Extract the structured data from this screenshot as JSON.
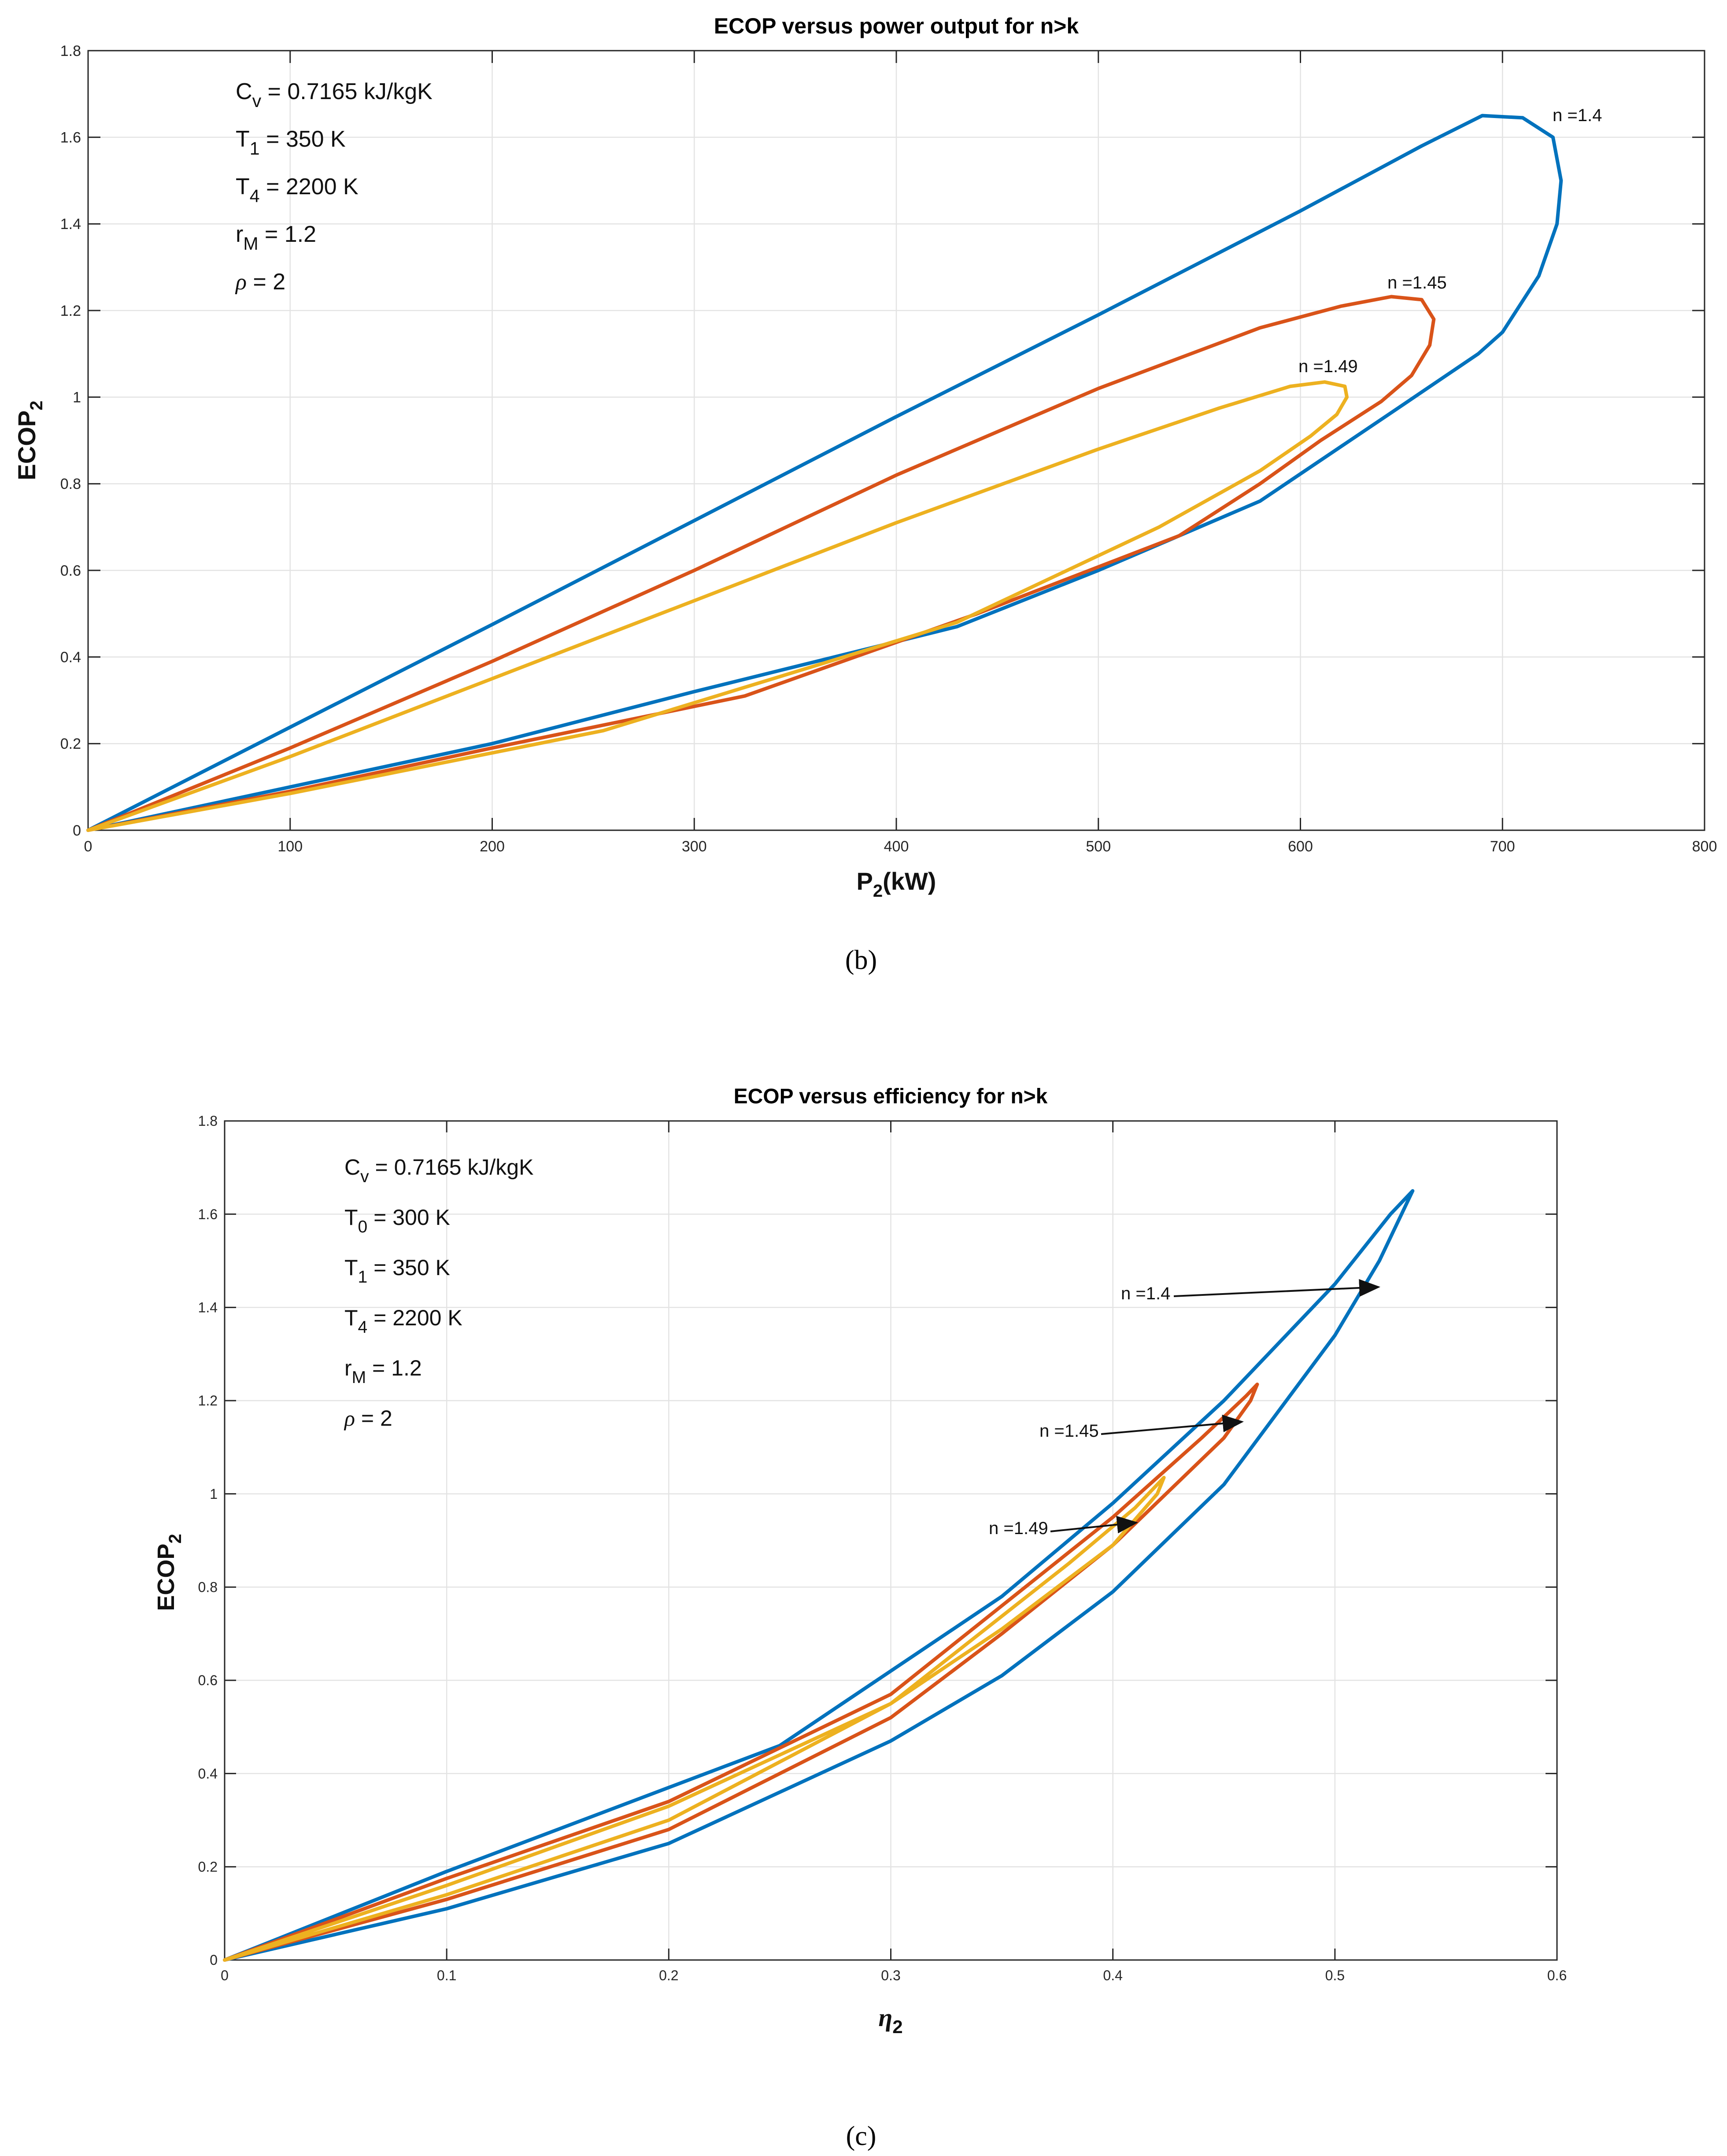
{
  "chart_data": [
    {
      "panel": "(b)",
      "type": "line",
      "title": "ECOP versus power output for n>k",
      "xlabel": "P2(kW)",
      "ylabel": "ECOP2",
      "xlim": [
        0,
        800
      ],
      "ylim": [
        0,
        1.8
      ],
      "xticks": [
        0,
        100,
        200,
        300,
        400,
        500,
        600,
        700,
        800
      ],
      "yticks": [
        0,
        0.2,
        0.4,
        0.6,
        0.8,
        1,
        1.2,
        1.4,
        1.6,
        1.8
      ],
      "grid": true,
      "parameters": [
        {
          "sym": "C",
          "sub": "v",
          "rest": " = 0.7165 kJ/kgK"
        },
        {
          "sym": "T",
          "sub": "1",
          "rest": " = 350 K"
        },
        {
          "sym": "T",
          "sub": "4",
          "rest": " = 2200 K"
        },
        {
          "sym": " r",
          "sub": "M",
          "rest": " = 1.2"
        },
        {
          "sym": "ρ",
          "sub": "",
          "rest": " = 2"
        }
      ],
      "series": [
        {
          "name": "n =1.4",
          "color": "#0072BD",
          "x": [
            0,
            100,
            200,
            300,
            400,
            500,
            600,
            660,
            690,
            710,
            725,
            729,
            727,
            718,
            700,
            688,
            650,
            580,
            500,
            430,
            300,
            200,
            100,
            0
          ],
          "y": [
            0,
            0.238,
            0.475,
            0.715,
            0.955,
            1.19,
            1.43,
            1.58,
            1.65,
            1.645,
            1.6,
            1.5,
            1.4,
            1.28,
            1.15,
            1.1,
            0.98,
            0.76,
            0.6,
            0.47,
            0.32,
            0.2,
            0.1,
            0
          ]
        },
        {
          "name": "n =1.45",
          "color": "#D95319",
          "x": [
            0,
            100,
            200,
            300,
            400,
            500,
            580,
            620,
            645,
            660,
            666,
            664,
            655,
            640,
            610,
            580,
            540,
            440,
            325,
            200,
            100,
            0
          ],
          "y": [
            0,
            0.19,
            0.39,
            0.6,
            0.82,
            1.02,
            1.16,
            1.21,
            1.232,
            1.225,
            1.18,
            1.12,
            1.05,
            0.99,
            0.9,
            0.8,
            0.68,
            0.5,
            0.31,
            0.19,
            0.09,
            0
          ]
        },
        {
          "name": "n =1.49",
          "color": "#EDB120",
          "x": [
            0,
            100,
            200,
            300,
            400,
            500,
            560,
            595,
            612,
            622,
            623,
            618,
            605,
            580,
            530,
            430,
            255,
            100,
            0
          ],
          "y": [
            0,
            0.17,
            0.35,
            0.53,
            0.71,
            0.88,
            0.975,
            1.025,
            1.035,
            1.025,
            1.0,
            0.96,
            0.91,
            0.83,
            0.7,
            0.48,
            0.23,
            0.085,
            0
          ]
        }
      ]
    },
    {
      "panel": "(c)",
      "type": "line",
      "title": "ECOP versus efficiency for n>k",
      "xlabel": "η2",
      "ylabel": "ECOP2",
      "xlim": [
        0,
        0.6
      ],
      "ylim": [
        0,
        1.8
      ],
      "xticks": [
        0,
        0.1,
        0.2,
        0.3,
        0.4,
        0.5,
        0.6
      ],
      "yticks": [
        0,
        0.2,
        0.4,
        0.6,
        0.8,
        1,
        1.2,
        1.4,
        1.6,
        1.8
      ],
      "grid": true,
      "parameters": [
        {
          "sym": "C",
          "sub": "v",
          "rest": " = 0.7165 kJ/kgK"
        },
        {
          "sym": "T",
          "sub": "0",
          "rest": " = 300 K"
        },
        {
          "sym": "T",
          "sub": "1",
          "rest": " = 350 K"
        },
        {
          "sym": "T",
          "sub": "4",
          "rest": " = 2200 K"
        },
        {
          "sym": " r",
          "sub": "M",
          "rest": " = 1.2"
        },
        {
          "sym": "ρ",
          "sub": "",
          "rest": " = 2"
        }
      ],
      "series": [
        {
          "name": "n =1.4",
          "color": "#0072BD",
          "x": [
            0,
            0.1,
            0.2,
            0.25,
            0.3,
            0.35,
            0.4,
            0.45,
            0.5,
            0.525,
            0.535,
            0.533,
            0.52,
            0.5,
            0.45,
            0.4,
            0.35,
            0.3,
            0.2,
            0.1,
            0
          ],
          "y": [
            0,
            0.19,
            0.37,
            0.46,
            0.62,
            0.78,
            0.98,
            1.2,
            1.45,
            1.6,
            1.65,
            1.63,
            1.5,
            1.34,
            1.02,
            0.79,
            0.61,
            0.47,
            0.25,
            0.11,
            0
          ]
        },
        {
          "name": "n =1.45",
          "color": "#D95319",
          "x": [
            0,
            0.1,
            0.2,
            0.3,
            0.4,
            0.44,
            0.46,
            0.465,
            0.462,
            0.45,
            0.4,
            0.35,
            0.3,
            0.2,
            0.1,
            0
          ],
          "y": [
            0,
            0.175,
            0.34,
            0.57,
            0.95,
            1.12,
            1.21,
            1.235,
            1.2,
            1.12,
            0.89,
            0.7,
            0.52,
            0.28,
            0.13,
            0
          ]
        },
        {
          "name": "n =1.49",
          "color": "#EDB120",
          "x": [
            0,
            0.1,
            0.2,
            0.3,
            0.38,
            0.41,
            0.42,
            0.423,
            0.42,
            0.4,
            0.35,
            0.3,
            0.2,
            0.1,
            0
          ],
          "y": [
            0,
            0.16,
            0.33,
            0.55,
            0.85,
            0.97,
            1.02,
            1.035,
            1.0,
            0.89,
            0.71,
            0.55,
            0.3,
            0.14,
            0
          ]
        }
      ],
      "annotations": [
        {
          "text": "n =1.4"
        },
        {
          "text": "n =1.45"
        },
        {
          "text": "n =1.49"
        }
      ]
    }
  ]
}
